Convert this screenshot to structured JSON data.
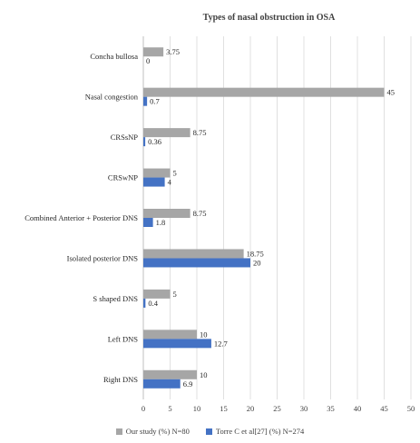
{
  "chart_data": {
    "type": "bar",
    "orientation": "horizontal",
    "title": "Types of nasal obstruction in OSA",
    "categories": [
      "Concha bullosa",
      "Nasal congestion",
      "CRSsNP",
      "CRSwNP",
      "Combined Anterior + Posterior DNS",
      "Isolated posterior DNS",
      "S shaped DNS",
      "Left DNS",
      "Right DNS"
    ],
    "series": [
      {
        "name": "Our study (%) N=80",
        "color": "#a6a6a6",
        "values": [
          3.75,
          45,
          8.75,
          5,
          8.75,
          18.75,
          5,
          10,
          10
        ],
        "labels": [
          "3.75",
          "45",
          "8.75",
          "5",
          "8.75",
          "18.75",
          "5",
          "10",
          "10"
        ]
      },
      {
        "name": "Torre C et al[27] (%) N=274",
        "color": "#4472c4",
        "values": [
          0,
          0.7,
          0.36,
          4,
          1.8,
          20,
          0.4,
          12.7,
          6.9
        ],
        "labels": [
          "0",
          "0.7",
          "0.36",
          "4",
          "1.8",
          "20",
          "0.4",
          "12.7",
          "6.9"
        ]
      }
    ],
    "xlim": [
      0,
      50
    ],
    "xticks": [
      "0",
      "5",
      "10",
      "15",
      "20",
      "25",
      "30",
      "35",
      "40",
      "45",
      "50"
    ],
    "grid": true,
    "legend_position": "bottom"
  }
}
